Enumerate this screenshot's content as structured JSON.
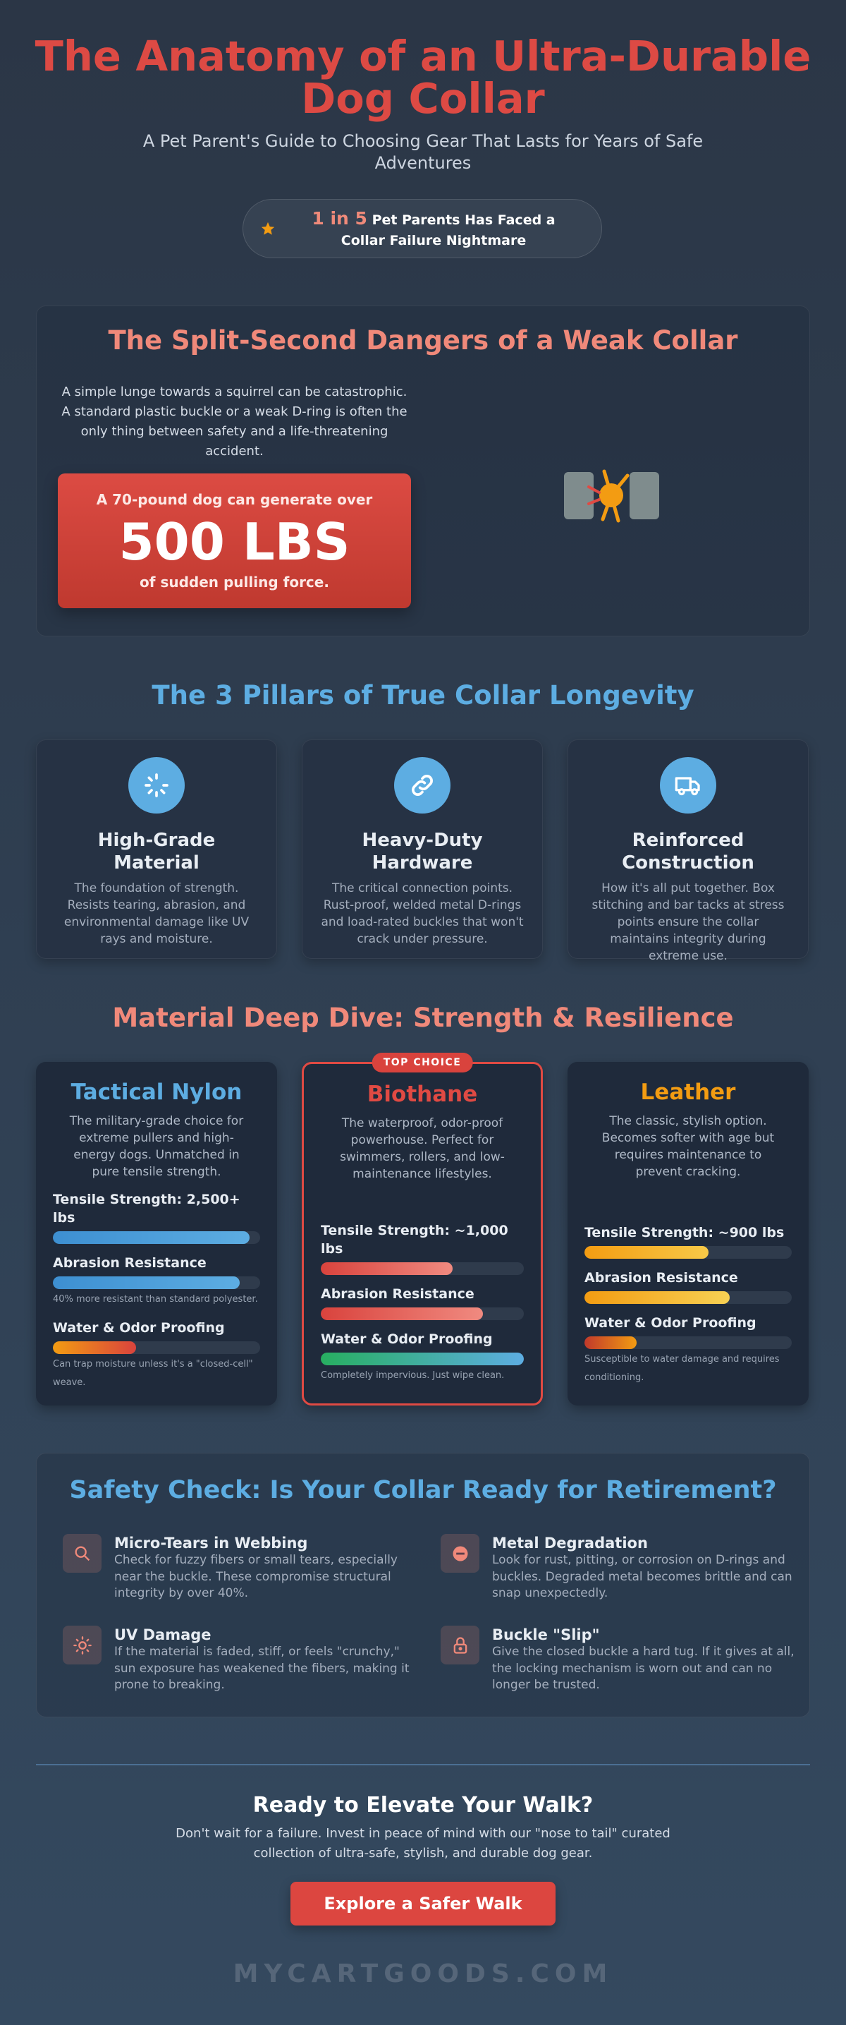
{
  "header": {
    "title": "The Anatomy of an Ultra-Durable Dog Collar",
    "subtitle": "A Pet Parent's Guide to Choosing Gear That Lasts for Years of Safe Adventures",
    "stat_highlight": "1 in 5",
    "stat_text": "Pet Parents Has Faced a Collar Failure Nightmare"
  },
  "dangers": {
    "title": "The Split-Second Dangers of a Weak Collar",
    "body": "A simple lunge towards a squirrel can be catastrophic. A standard plastic buckle or a weak D-ring is often the only thing between safety and a life-threatening accident.",
    "callout": {
      "lead": "A 70-pound dog can generate over",
      "figure": "500 LBS",
      "tail": "of sudden pulling force."
    }
  },
  "pillars": {
    "title": "The 3 Pillars of True Collar Longevity",
    "items": [
      {
        "title": "High-Grade Material",
        "text": "The foundation of strength. Resists tearing, abrasion, and environmental damage like UV rays and moisture."
      },
      {
        "title": "Heavy-Duty Hardware",
        "text": "The critical connection points. Rust-proof, welded metal D-rings and load-rated buckles that won't crack under pressure."
      },
      {
        "title": "Reinforced Construction",
        "text": "How it's all put together. Box stitching and bar tacks at stress points ensure the collar maintains integrity during extreme use."
      }
    ]
  },
  "materials": {
    "title": "Material Deep Dive: Strength & Resilience",
    "badge": "TOP CHOICE",
    "items": [
      {
        "name": "Tactical Nylon",
        "color": "#5dade2",
        "text": "The military-grade choice for extreme pullers and high-energy dogs. Unmatched in pure tensile strength.",
        "metrics": [
          {
            "label": "Tensile Strength: 2,500+ lbs",
            "level": 95,
            "colors": [
              "#3d8fd1",
              "#5dade2"
            ]
          },
          {
            "label": "Abrasion Resistance",
            "level": 90,
            "colors": [
              "#3d8fd1",
              "#5dade2"
            ],
            "note": "40% more resistant than standard polyester."
          },
          {
            "label": "Water & Odor Proofing",
            "level": 40,
            "colors": [
              "#f39c12",
              "#d9433d"
            ],
            "note": "Can trap moisture unless it's a \"closed-cell\" weave."
          }
        ]
      },
      {
        "name": "Biothane",
        "color": "#e04a43",
        "featured": true,
        "text": "The waterproof, odor-proof powerhouse. Perfect for swimmers, rollers, and low-maintenance lifestyles.",
        "metrics": [
          {
            "label": "Tensile Strength: ~1,000 lbs",
            "level": 65,
            "colors": [
              "#d9433d",
              "#f08a80"
            ]
          },
          {
            "label": "Abrasion Resistance",
            "level": 80,
            "colors": [
              "#d9433d",
              "#f08a80"
            ]
          },
          {
            "label": "Water & Odor Proofing",
            "level": 100,
            "colors": [
              "#27ae60",
              "#5dade2"
            ],
            "note": "Completely impervious. Just wipe clean."
          }
        ]
      },
      {
        "name": "Leather",
        "color": "#f39c12",
        "text": "The classic, stylish option. Becomes softer with age but requires maintenance to prevent cracking.",
        "metrics": [
          {
            "label": "Tensile Strength: ~900 lbs",
            "level": 60,
            "colors": [
              "#f39c12",
              "#f7c948"
            ]
          },
          {
            "label": "Abrasion Resistance",
            "level": 70,
            "colors": [
              "#f39c12",
              "#f7d154"
            ]
          },
          {
            "label": "Water & Odor Proofing",
            "level": 25,
            "colors": [
              "#c0392b",
              "#f39c12"
            ],
            "note": "Susceptible to water damage and requires conditioning."
          }
        ]
      }
    ]
  },
  "safety": {
    "title": "Safety Check: Is Your Collar Ready for Retirement?",
    "items": [
      {
        "title": "Micro-Tears in Webbing",
        "text": "Check for fuzzy fibers or small tears, especially near the buckle. These compromise structural integrity by over 40%."
      },
      {
        "title": "Metal Degradation",
        "text": "Look for rust, pitting, or corrosion on D-rings and buckles. Degraded metal becomes brittle and can snap unexpectedly."
      },
      {
        "title": "UV Damage",
        "text": "If the material is faded, stiff, or feels \"crunchy,\" sun exposure has weakened the fibers, making it prone to breaking."
      },
      {
        "title": "Buckle \"Slip\"",
        "text": "Give the closed buckle a hard tug. If it gives at all, the locking mechanism is worn out and can no longer be trusted."
      }
    ]
  },
  "cta": {
    "title": "Ready to Elevate Your Walk?",
    "text": "Don't wait for a failure. Invest in peace of mind with our \"nose to tail\" curated collection of ultra-safe, stylish, and durable dog gear.",
    "button": "Explore a Safer Walk"
  },
  "footer": "MYCARTGOODS.COM"
}
